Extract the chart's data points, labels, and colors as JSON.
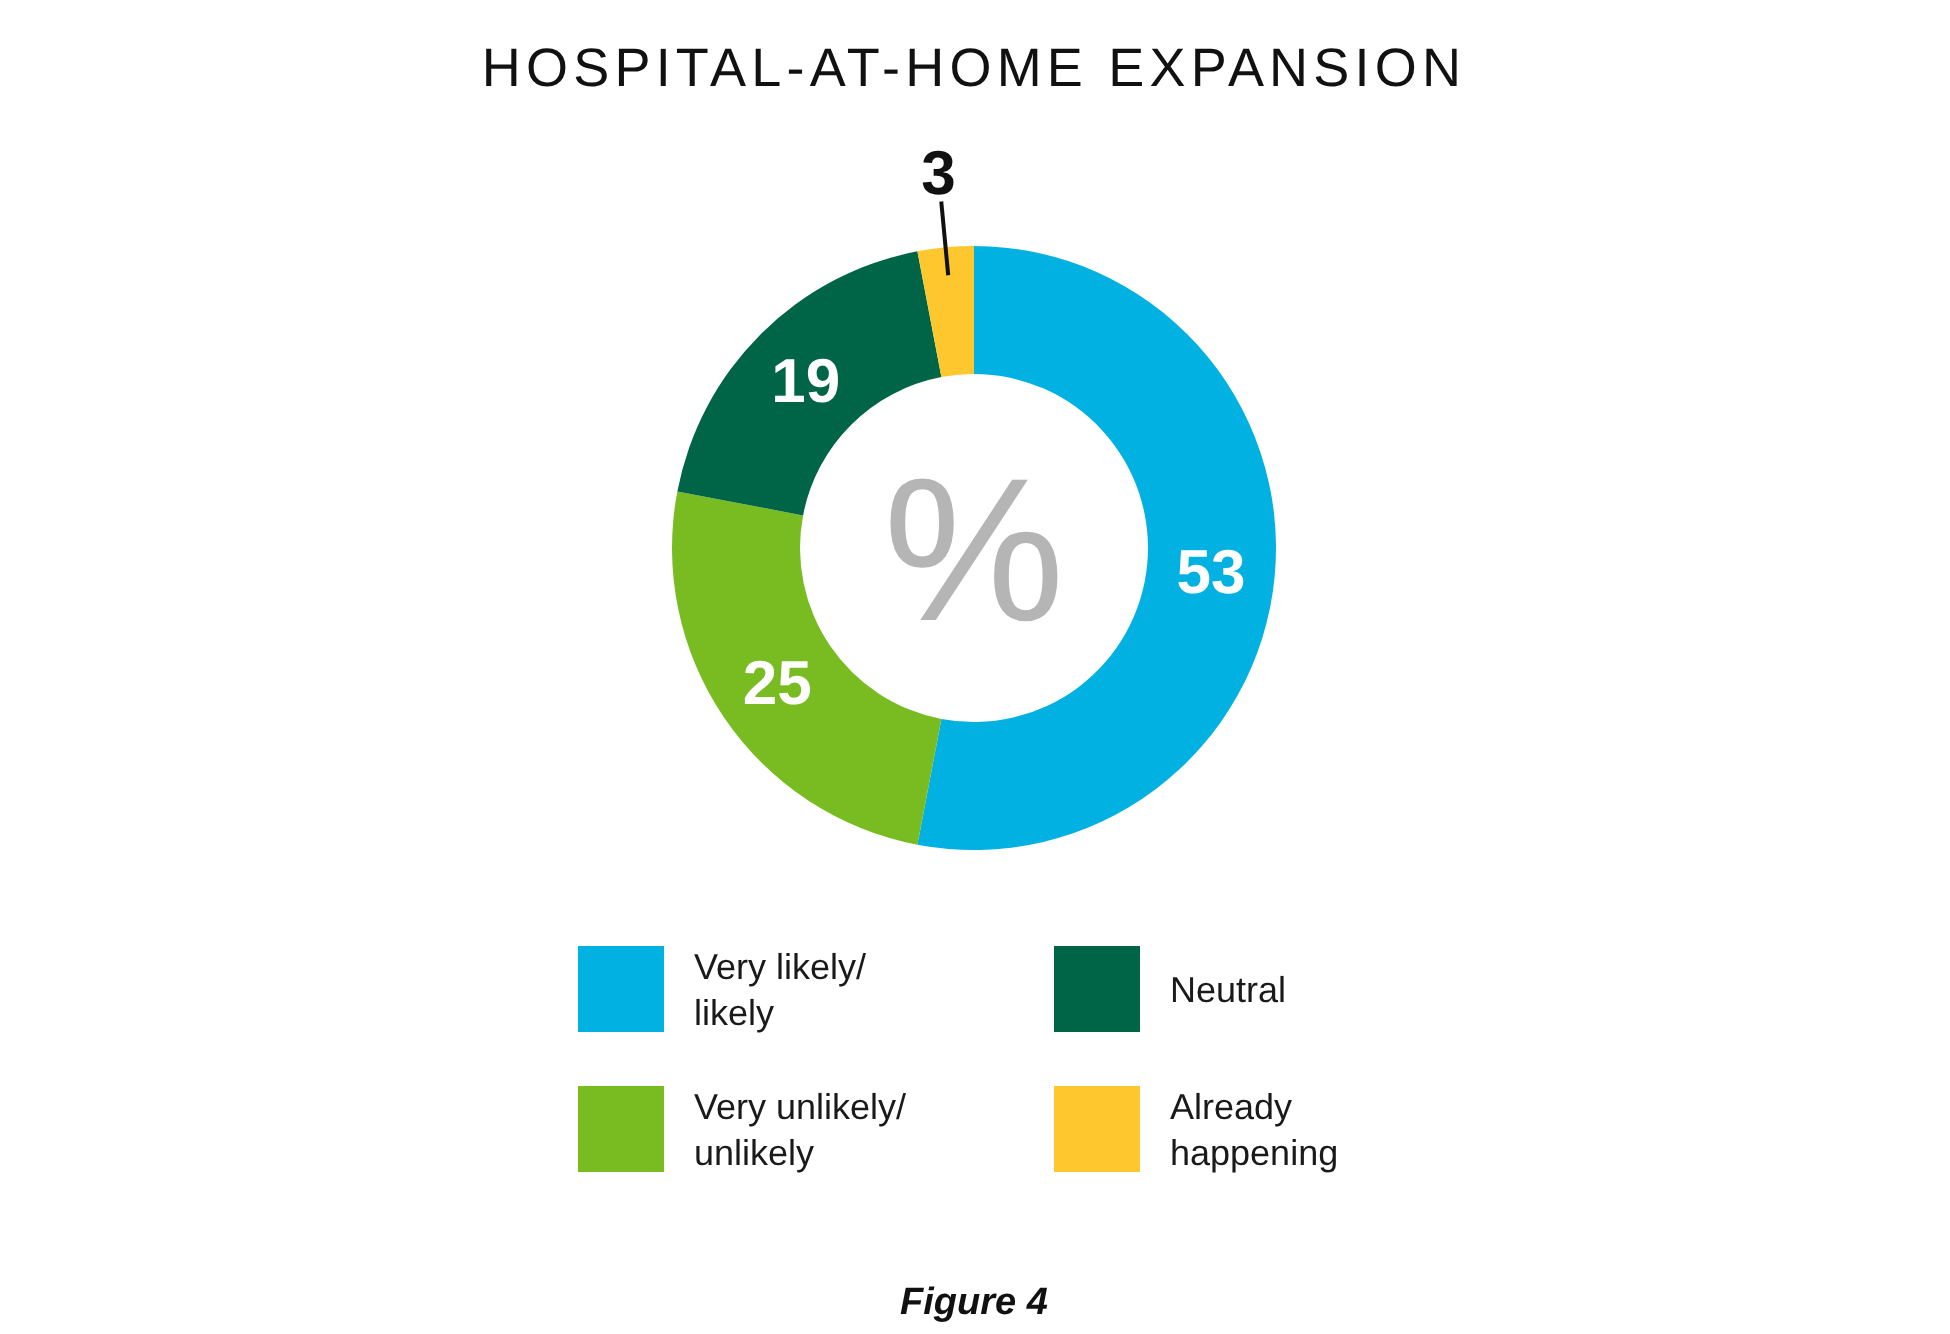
{
  "chart_data": {
    "type": "donut",
    "title": "HOSPITAL-AT-HOME EXPANSION",
    "categories": [
      "Very likely/likely",
      "Very unlikely/unlikely",
      "Neutral",
      "Already happening"
    ],
    "values": [
      53,
      25,
      19,
      3
    ],
    "colors": [
      "#00b1e1",
      "#78bc21",
      "#006446",
      "#fec72e"
    ],
    "data_labels": true,
    "legend": "bottom",
    "annotations": [
      "%",
      "Figure 4"
    ]
  }
}
